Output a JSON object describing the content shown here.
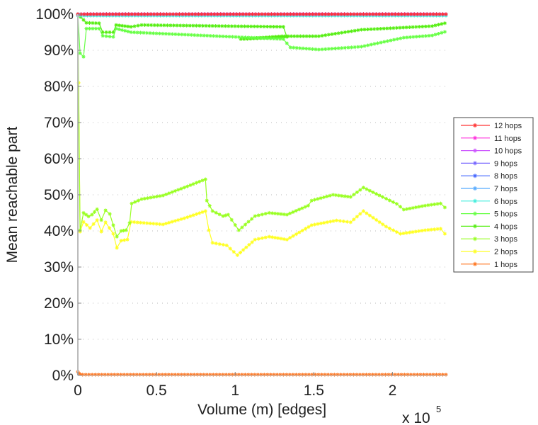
{
  "chart_data": {
    "type": "line",
    "title": "",
    "xlabel": "Volume (m) [edges]",
    "ylabel": "Mean reachable part",
    "x_multiplier_label": "x 10",
    "x_multiplier_exponent": "5",
    "xlim": [
      0,
      2.34
    ],
    "ylim": [
      0,
      100
    ],
    "x_ticks": [
      0,
      0.5,
      1,
      1.5,
      2
    ],
    "x_tick_labels": [
      "0",
      "0.5",
      "1",
      "1.5",
      "2"
    ],
    "y_ticks": [
      0,
      10,
      20,
      30,
      40,
      50,
      60,
      70,
      80,
      90,
      100
    ],
    "y_tick_labels": [
      "0%",
      "10%",
      "20%",
      "30%",
      "40%",
      "50%",
      "60%",
      "70%",
      "80%",
      "90%",
      "100%"
    ],
    "grid": "horizontal dotted",
    "legend_position": "right",
    "series": [
      {
        "name": "12 hops",
        "color": "#ff3333",
        "x": [
          0,
          2.34
        ],
        "y": [
          100,
          100
        ]
      },
      {
        "name": "11 hops",
        "color": "#ff33dd",
        "x": [
          0,
          2.34
        ],
        "y": [
          100,
          100
        ]
      },
      {
        "name": "10 hops",
        "color": "#cc55ff",
        "x": [
          0,
          2.34
        ],
        "y": [
          100,
          100
        ]
      },
      {
        "name": "9 hops",
        "color": "#7766ff",
        "x": [
          0,
          2.34
        ],
        "y": [
          100,
          100
        ]
      },
      {
        "name": "8 hops",
        "color": "#4466ff",
        "x": [
          0,
          2.34
        ],
        "y": [
          100,
          100
        ]
      },
      {
        "name": "7 hops",
        "color": "#55aaff",
        "x": [
          0,
          2.34
        ],
        "y": [
          100,
          100
        ]
      },
      {
        "name": "6 hops",
        "color": "#44eedd",
        "x": [
          0,
          2.34
        ],
        "y": [
          99.6,
          99.6
        ]
      },
      {
        "name": "5 hops",
        "color": "#66ff44",
        "x": [
          0,
          0.014,
          0.036,
          0.054,
          0.135,
          0.158,
          0.225,
          0.243,
          0.338,
          1.306,
          1.351,
          1.532,
          1.802,
          2.072,
          2.252,
          2.333
        ],
        "y": [
          100,
          89.2,
          88.2,
          96,
          96,
          94,
          93.7,
          96,
          95,
          93.1,
          90.8,
          90.2,
          91,
          93.5,
          94.1,
          95.1
        ]
      },
      {
        "name": "4 hops",
        "color": "#55ee11",
        "x": [
          0,
          0.054,
          0.135,
          0.158,
          0.225,
          0.243,
          0.338,
          0.405,
          1.306,
          1.329,
          1.036,
          1.297,
          1.532,
          1.802,
          2.252,
          2.333
        ],
        "y": [
          100,
          97.6,
          97.5,
          95,
          95,
          97,
          96.5,
          97,
          96.5,
          93.7,
          93.1,
          93.9,
          93.9,
          95.7,
          96.7,
          97.5
        ]
      },
      {
        "name": "3 hops",
        "color": "#99ff22",
        "x": [
          0,
          0.014,
          0.036,
          0.068,
          0.09,
          0.122,
          0.149,
          0.176,
          0.203,
          0.225,
          0.248,
          0.275,
          0.306,
          0.329,
          0.342,
          0.405,
          0.541,
          0.676,
          0.811,
          0.82,
          0.856,
          0.923,
          0.955,
          1.023,
          1.126,
          1.216,
          1.329,
          1.464,
          1.486,
          1.622,
          1.734,
          1.815,
          1.937,
          2.027,
          2.072,
          2.207,
          2.306,
          2.333
        ],
        "y": [
          100,
          40.2,
          45,
          44,
          44.5,
          46,
          43,
          45.7,
          44.7,
          41.6,
          38.4,
          40,
          40.2,
          42.2,
          47.6,
          48.8,
          49.8,
          52,
          54.3,
          48.4,
          45.5,
          44.1,
          44.5,
          40.2,
          44.1,
          45,
          44.5,
          47,
          48.4,
          50,
          49.4,
          52,
          49.4,
          47.5,
          45.9,
          47,
          47.6,
          46.5
        ]
      },
      {
        "name": "2 hops",
        "color": "#ffff22",
        "x": [
          0.005,
          0.014,
          0.036,
          0.077,
          0.122,
          0.149,
          0.176,
          0.225,
          0.248,
          0.275,
          0.315,
          0.338,
          0.541,
          0.676,
          0.811,
          0.833,
          0.856,
          0.946,
          1.014,
          1.126,
          1.216,
          1.329,
          1.486,
          1.644,
          1.734,
          1.815,
          1.959,
          2.05,
          2.207,
          2.306,
          2.333
        ],
        "y": [
          81,
          39.8,
          42.5,
          40.8,
          43,
          39.8,
          42.4,
          39.2,
          35.3,
          37.3,
          37.6,
          42.5,
          41.8,
          43.5,
          45.5,
          40.2,
          36.7,
          36,
          33.3,
          37.6,
          38.4,
          37.6,
          41.6,
          42.9,
          42.4,
          45.5,
          41.2,
          39.2,
          40.2,
          40.6,
          39.2
        ]
      },
      {
        "name": "1 hops",
        "color": "#ff7722",
        "x": [
          0,
          0.01,
          0.03,
          2.34
        ],
        "y": [
          1,
          0.5,
          0.2,
          0.2
        ]
      }
    ]
  }
}
